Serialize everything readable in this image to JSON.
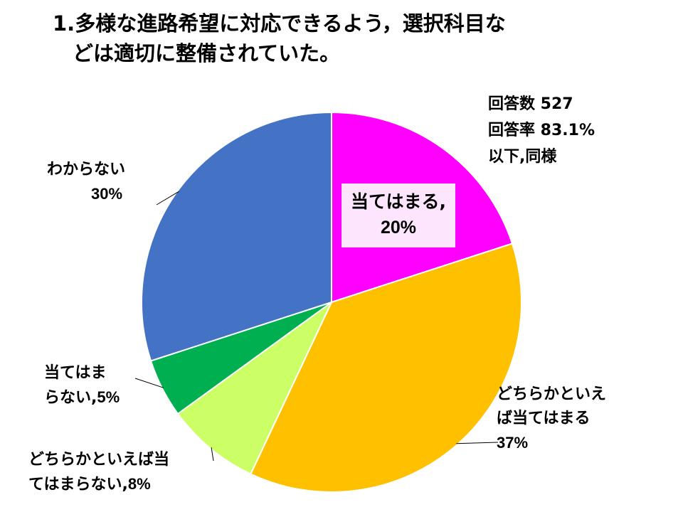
{
  "chart_data": {
    "type": "pie",
    "title_line1": "1.多様な進路希望に対応できるよう，選択科目な",
    "title_line2": "どは適切に整備されていた。",
    "stats": {
      "respondents": "回答数 527",
      "rate": "回答率 83.1%",
      "note": "以下,同様"
    },
    "slices": [
      {
        "label": "当てはまる",
        "value": 20,
        "pct_text": "20%",
        "color": "#ff00ff"
      },
      {
        "label": "どちらかといえば当てはまる",
        "value": 37,
        "pct_text": "37%",
        "color": "#ffc000"
      },
      {
        "label": "どちらかといえば当てはまらない",
        "value": 8,
        "pct_text": "8%",
        "color": "#ccff66"
      },
      {
        "label": "当てはまらない",
        "value": 5,
        "pct_text": "5%",
        "color": "#00b050"
      },
      {
        "label": "わからない",
        "value": 30,
        "pct_text": "30%",
        "color": "#4472c4"
      }
    ],
    "label_texts": {
      "s0_line1": "当てはまる,",
      "s1_line1": "どちらかといえ",
      "s1_line2": "ば当てはまる",
      "s2_line1": "どちらかといえば当",
      "s2_line2": "てはまらない,",
      "s3_line1": "当てはま",
      "s3_line2": "らない,",
      "s4_line1": "わからない"
    }
  }
}
